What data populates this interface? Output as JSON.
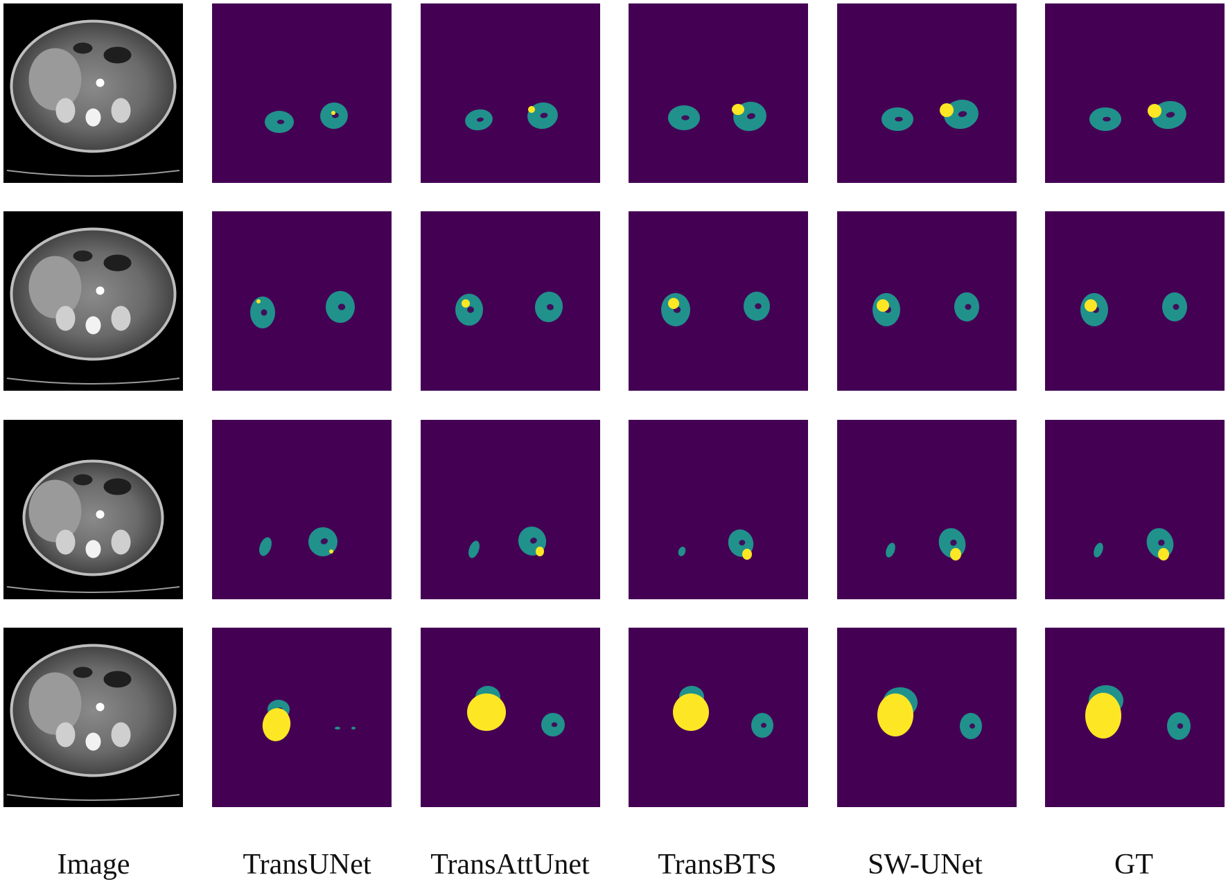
{
  "figure": {
    "columns": [
      {
        "label": "Image"
      },
      {
        "label": "TransUNet"
      },
      {
        "label": "TransAttUnet"
      },
      {
        "label": "TransBTS"
      },
      {
        "label": "SW-UNet"
      },
      {
        "label": "GT"
      }
    ],
    "rows": 4
  },
  "colors": {
    "background": "#440154",
    "kidney": "#21918c",
    "tumor": "#fde725",
    "ct_background": "#000000"
  }
}
